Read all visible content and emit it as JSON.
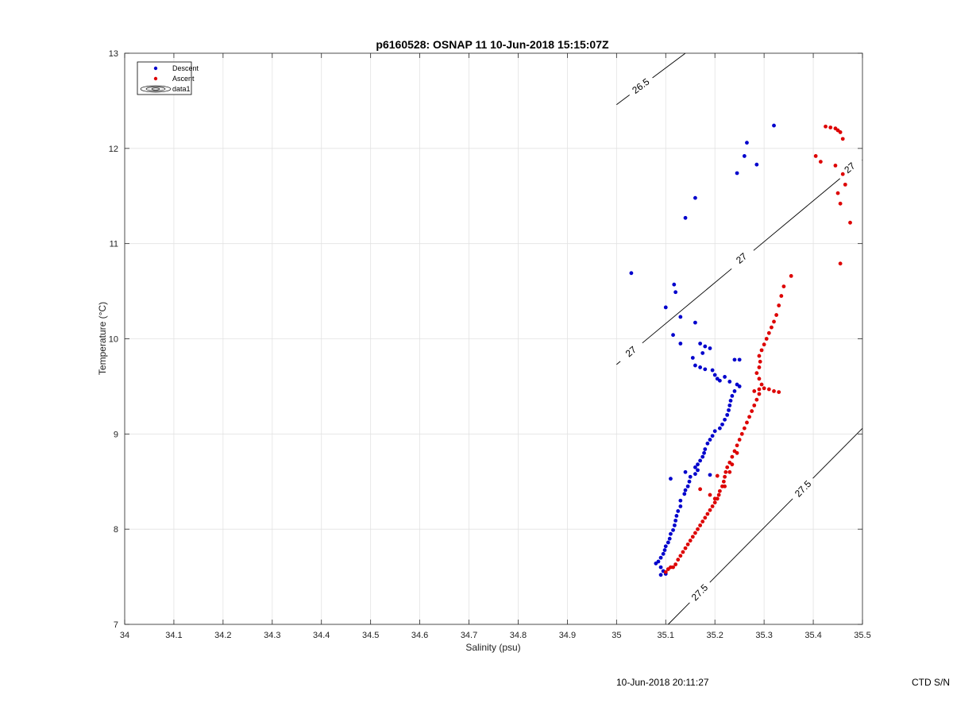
{
  "chart_data": {
    "type": "scatter",
    "title": "p6160528: OSNAP 11 10-Jun-2018 15:15:07Z",
    "xlabel": "Salinity (psu)",
    "ylabel": "Temperature (°C)",
    "xlim": [
      34,
      35.5
    ],
    "ylim": [
      7,
      13
    ],
    "xticks": [
      34,
      34.1,
      34.2,
      34.3,
      34.4,
      34.5,
      34.6,
      34.7,
      34.8,
      34.9,
      35,
      35.1,
      35.2,
      35.3,
      35.4,
      35.5
    ],
    "xtick_labels": [
      "34",
      "34.1",
      "34.2",
      "34.3",
      "34.4",
      "34.5",
      "34.6",
      "34.7",
      "34.8",
      "34.9",
      "35",
      "35.1",
      "35.2",
      "35.3",
      "35.4",
      "35.5"
    ],
    "yticks": [
      7,
      8,
      9,
      10,
      11,
      12,
      13
    ],
    "ytick_labels": [
      "7",
      "8",
      "9",
      "10",
      "11",
      "12",
      "13"
    ],
    "grid": true,
    "legend_position": "top-left",
    "legend": [
      "Descent",
      "Ascent",
      "data1"
    ],
    "series": [
      {
        "name": "Descent",
        "color": "#0000cc",
        "points": [
          [
            35.03,
            10.69
          ],
          [
            35.117,
            10.57
          ],
          [
            35.1,
            10.33
          ],
          [
            35.13,
            10.23
          ],
          [
            35.115,
            10.04
          ],
          [
            35.13,
            9.95
          ],
          [
            35.16,
            10.17
          ],
          [
            35.16,
            11.48
          ],
          [
            35.14,
            11.27
          ],
          [
            35.245,
            11.74
          ],
          [
            35.26,
            11.92
          ],
          [
            35.265,
            12.06
          ],
          [
            35.285,
            11.83
          ],
          [
            35.32,
            12.24
          ],
          [
            35.12,
            10.49
          ],
          [
            35.17,
            9.95
          ],
          [
            35.175,
            9.85
          ],
          [
            35.18,
            9.92
          ],
          [
            35.19,
            9.9
          ],
          [
            35.155,
            9.8
          ],
          [
            35.16,
            9.72
          ],
          [
            35.17,
            9.7
          ],
          [
            35.18,
            9.68
          ],
          [
            35.195,
            9.67
          ],
          [
            35.2,
            9.62
          ],
          [
            35.205,
            9.58
          ],
          [
            35.21,
            9.56
          ],
          [
            35.22,
            9.6
          ],
          [
            35.24,
            9.78
          ],
          [
            35.25,
            9.78
          ],
          [
            35.23,
            9.55
          ],
          [
            35.245,
            9.52
          ],
          [
            35.25,
            9.5
          ],
          [
            35.24,
            9.45
          ],
          [
            35.235,
            9.4
          ],
          [
            35.232,
            9.35
          ],
          [
            35.23,
            9.3
          ],
          [
            35.228,
            9.25
          ],
          [
            35.225,
            9.2
          ],
          [
            35.22,
            9.15
          ],
          [
            35.215,
            9.1
          ],
          [
            35.21,
            9.06
          ],
          [
            35.2,
            9.03
          ],
          [
            35.195,
            8.98
          ],
          [
            35.19,
            8.94
          ],
          [
            35.185,
            8.9
          ],
          [
            35.18,
            8.84
          ],
          [
            35.178,
            8.8
          ],
          [
            35.175,
            8.76
          ],
          [
            35.17,
            8.72
          ],
          [
            35.165,
            8.68
          ],
          [
            35.16,
            8.65
          ],
          [
            35.165,
            8.62
          ],
          [
            35.19,
            8.57
          ],
          [
            35.16,
            8.58
          ],
          [
            35.15,
            8.55
          ],
          [
            35.148,
            8.5
          ],
          [
            35.145,
            8.45
          ],
          [
            35.14,
            8.41
          ],
          [
            35.138,
            8.37
          ],
          [
            35.14,
            8.6
          ],
          [
            35.11,
            8.53
          ],
          [
            35.13,
            8.3
          ],
          [
            35.13,
            8.24
          ],
          [
            35.125,
            8.19
          ],
          [
            35.122,
            8.14
          ],
          [
            35.12,
            8.09
          ],
          [
            35.118,
            8.04
          ],
          [
            35.115,
            7.99
          ],
          [
            35.11,
            7.95
          ],
          [
            35.108,
            7.9
          ],
          [
            35.105,
            7.86
          ],
          [
            35.1,
            7.82
          ],
          [
            35.098,
            7.78
          ],
          [
            35.095,
            7.74
          ],
          [
            35.09,
            7.7
          ],
          [
            35.085,
            7.66
          ],
          [
            35.08,
            7.64
          ],
          [
            35.09,
            7.6
          ],
          [
            35.095,
            7.56
          ],
          [
            35.1,
            7.53
          ],
          [
            35.09,
            7.52
          ]
        ]
      },
      {
        "name": "Ascent",
        "color": "#dd0000",
        "points": [
          [
            35.1,
            7.55
          ],
          [
            35.105,
            7.58
          ],
          [
            35.11,
            7.6
          ],
          [
            35.115,
            7.6
          ],
          [
            35.12,
            7.63
          ],
          [
            35.125,
            7.68
          ],
          [
            35.13,
            7.72
          ],
          [
            35.135,
            7.76
          ],
          [
            35.14,
            7.8
          ],
          [
            35.145,
            7.84
          ],
          [
            35.15,
            7.88
          ],
          [
            35.155,
            7.92
          ],
          [
            35.16,
            7.96
          ],
          [
            35.165,
            8.0
          ],
          [
            35.17,
            8.04
          ],
          [
            35.175,
            8.08
          ],
          [
            35.18,
            8.12
          ],
          [
            35.185,
            8.16
          ],
          [
            35.19,
            8.2
          ],
          [
            35.195,
            8.24
          ],
          [
            35.2,
            8.28
          ],
          [
            35.205,
            8.32
          ],
          [
            35.208,
            8.36
          ],
          [
            35.21,
            8.4
          ],
          [
            35.215,
            8.45
          ],
          [
            35.218,
            8.5
          ],
          [
            35.22,
            8.55
          ],
          [
            35.222,
            8.6
          ],
          [
            35.225,
            8.65
          ],
          [
            35.23,
            8.7
          ],
          [
            35.235,
            8.76
          ],
          [
            35.24,
            8.82
          ],
          [
            35.245,
            8.88
          ],
          [
            35.25,
            8.94
          ],
          [
            35.255,
            9.0
          ],
          [
            35.26,
            9.06
          ],
          [
            35.265,
            9.12
          ],
          [
            35.27,
            9.18
          ],
          [
            35.275,
            9.24
          ],
          [
            35.28,
            9.3
          ],
          [
            35.285,
            9.36
          ],
          [
            35.29,
            9.42
          ],
          [
            35.28,
            9.45
          ],
          [
            35.29,
            9.47
          ],
          [
            35.3,
            9.48
          ],
          [
            35.31,
            9.47
          ],
          [
            35.32,
            9.45
          ],
          [
            35.33,
            9.44
          ],
          [
            35.295,
            9.52
          ],
          [
            35.29,
            9.58
          ],
          [
            35.285,
            9.64
          ],
          [
            35.29,
            9.7
          ],
          [
            35.292,
            9.76
          ],
          [
            35.29,
            9.82
          ],
          [
            35.295,
            9.88
          ],
          [
            35.3,
            9.94
          ],
          [
            35.305,
            10.0
          ],
          [
            35.31,
            10.06
          ],
          [
            35.315,
            10.12
          ],
          [
            35.32,
            10.18
          ],
          [
            35.325,
            10.25
          ],
          [
            35.33,
            10.35
          ],
          [
            35.335,
            10.45
          ],
          [
            35.34,
            10.55
          ],
          [
            35.355,
            10.66
          ],
          [
            35.405,
            11.92
          ],
          [
            35.415,
            11.86
          ],
          [
            35.425,
            12.23
          ],
          [
            35.435,
            12.22
          ],
          [
            35.445,
            12.21
          ],
          [
            35.45,
            12.19
          ],
          [
            35.455,
            12.17
          ],
          [
            35.46,
            12.1
          ],
          [
            35.445,
            11.82
          ],
          [
            35.46,
            11.73
          ],
          [
            35.465,
            11.62
          ],
          [
            35.45,
            11.53
          ],
          [
            35.455,
            11.42
          ],
          [
            35.475,
            11.22
          ],
          [
            35.455,
            10.79
          ],
          [
            35.17,
            8.42
          ],
          [
            35.19,
            8.36
          ],
          [
            35.205,
            8.56
          ],
          [
            35.23,
            8.6
          ],
          [
            35.22,
            8.45
          ],
          [
            35.2,
            8.32
          ],
          [
            35.235,
            8.68
          ],
          [
            35.245,
            8.8
          ]
        ]
      }
    ],
    "contours": [
      {
        "label": "26.5",
        "points": [
          [
            35.0,
            12.46
          ],
          [
            35.14,
            13.0
          ]
        ],
        "label_at": [
          35.05,
          12.65
        ]
      },
      {
        "label": "27",
        "points": [
          [
            35.0,
            9.73
          ],
          [
            35.5,
            11.88
          ]
        ],
        "label_labels_at": [
          [
            35.03,
            9.86
          ],
          [
            35.255,
            10.84
          ],
          [
            35.475,
            11.79
          ]
        ]
      },
      {
        "label": "27.5",
        "points": [
          [
            35.105,
            7.0
          ],
          [
            35.5,
            9.06
          ]
        ],
        "label_labels_at": [
          [
            35.17,
            7.33
          ],
          [
            35.38,
            8.42
          ]
        ]
      }
    ]
  },
  "footer": {
    "timestamp": "10-Jun-2018 20:11:27",
    "ctd": "CTD S/N"
  }
}
